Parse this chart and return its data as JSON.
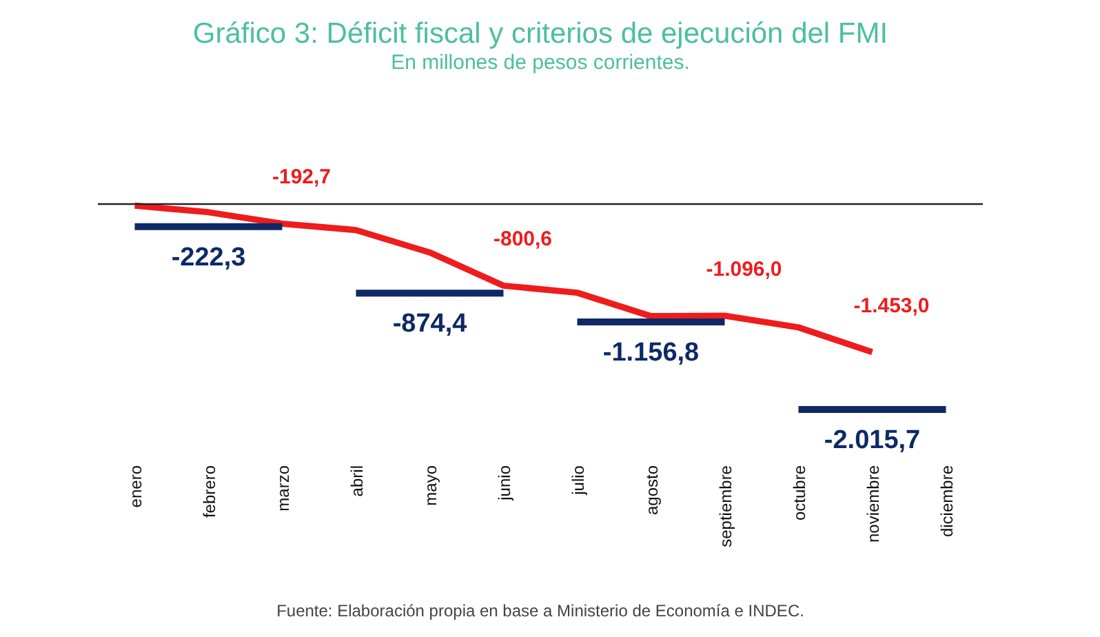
{
  "chart_data": {
    "type": "line",
    "title": "Gráfico 3: Déficit fiscal y criterios de ejecución del FMI",
    "subtitle": "En millones de pesos corrientes.",
    "annotations": [
      "Fuente: Elaboración propia en base a Ministerio de Economía e INDEC."
    ],
    "categories": [
      "enero",
      "febrero",
      "marzo",
      "abril",
      "mayo",
      "junio",
      "julio",
      "agosto",
      "septiembre",
      "octubre",
      "noviembre",
      "diciembre"
    ],
    "tick_labels": "x",
    "grid": false,
    "line_style": "solid",
    "ref_lines": [
      {
        "axis": "y",
        "value": 0,
        "color": "#222222"
      }
    ],
    "series": [
      {
        "color": "#ee1c1c",
        "values": [
          -15,
          -80,
          -192.7,
          -255,
          -475,
          -800.6,
          -870,
          -1100,
          -1096.0,
          -1210,
          -1453.0,
          null
        ],
        "value_labels": [
          null,
          null,
          "-192,7",
          null,
          null,
          "-800,6",
          null,
          null,
          "-1.096,0",
          null,
          "-1.453,0",
          null
        ]
      },
      {
        "color": "#0d2a66",
        "values": [
          -222.3,
          -222.3,
          -222.3,
          null,
          null,
          null,
          null,
          null,
          null,
          null,
          null,
          null
        ],
        "value_labels": [
          null,
          "-222,3",
          null,
          null,
          null,
          null,
          null,
          null,
          null,
          null,
          null,
          null
        ]
      },
      {
        "color": "#0d2a66",
        "values": [
          null,
          null,
          null,
          -874.4,
          -874.4,
          -874.4,
          null,
          null,
          null,
          null,
          null,
          null
        ],
        "value_labels": [
          null,
          null,
          null,
          null,
          "-874,4",
          null,
          null,
          null,
          null,
          null,
          null,
          null
        ]
      },
      {
        "color": "#0d2a66",
        "values": [
          null,
          null,
          null,
          null,
          null,
          null,
          -1156.8,
          -1156.8,
          -1156.8,
          null,
          null,
          null
        ],
        "value_labels": [
          null,
          null,
          null,
          null,
          null,
          null,
          null,
          "-1.156,8",
          null,
          null,
          null,
          null
        ]
      },
      {
        "color": "#0d2a66",
        "values": [
          null,
          null,
          null,
          null,
          null,
          null,
          null,
          null,
          null,
          -2015.7,
          -2015.7,
          -2015.7
        ],
        "value_labels": [
          null,
          null,
          null,
          null,
          null,
          null,
          null,
          null,
          null,
          null,
          "-2.015,7",
          null
        ]
      }
    ]
  }
}
